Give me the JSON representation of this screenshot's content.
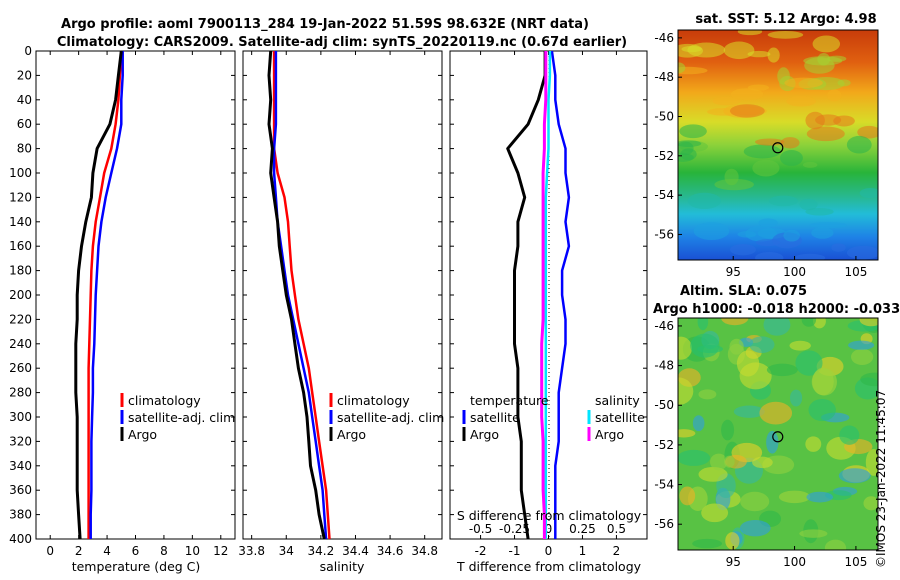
{
  "header": {
    "line1": "Argo profile: aoml 7900113_284 19-Jan-2022 51.59S 98.632E (NRT data)",
    "line2": "Climatology: CARS2009. Satellite-adj clim: synTS_20220119.nc (0.67d earlier)"
  },
  "stamp": "©IMOS 23-Jan-2022 11:45:07",
  "colors": {
    "climatology": "#ff0000",
    "satellite": "#0000ff",
    "argo": "#000000",
    "sal_satellite": "#00e5ff",
    "sal_argo": "#ff00ff"
  },
  "chart_data": [
    {
      "type": "line",
      "name": "temperature",
      "xlabel": "temperature (deg C)",
      "ylabel": "",
      "xlim": [
        -1,
        13
      ],
      "ylim": [
        400,
        0
      ],
      "xticks": [
        "0",
        "2",
        "4",
        "6",
        "8",
        "10",
        "12"
      ],
      "yticks": [
        "0",
        "20",
        "40",
        "60",
        "80",
        "100",
        "120",
        "140",
        "160",
        "180",
        "200",
        "220",
        "240",
        "260",
        "280",
        "300",
        "320",
        "340",
        "360",
        "380",
        "400"
      ],
      "depth": [
        0,
        20,
        40,
        60,
        80,
        100,
        120,
        140,
        160,
        180,
        200,
        220,
        240,
        260,
        280,
        300,
        320,
        340,
        360,
        380,
        400
      ],
      "legend": [
        "climatology",
        "satellite-adj. clim",
        "Argo"
      ],
      "series": [
        {
          "name": "climatology",
          "color": "#ff0000",
          "x": [
            5.0,
            4.9,
            4.8,
            4.6,
            4.3,
            3.8,
            3.5,
            3.2,
            3.0,
            2.9,
            2.85,
            2.8,
            2.75,
            2.7,
            2.7,
            2.7,
            2.7,
            2.7,
            2.7,
            2.7,
            2.7
          ]
        },
        {
          "name": "satellite-adj. clim",
          "color": "#0000ff",
          "x": [
            5.1,
            5.1,
            5.0,
            5.0,
            4.7,
            4.3,
            3.9,
            3.6,
            3.4,
            3.3,
            3.2,
            3.15,
            3.1,
            3.0,
            3.0,
            2.95,
            2.9,
            2.9,
            2.9,
            2.85,
            2.85
          ]
        },
        {
          "name": "Argo",
          "color": "#000000",
          "x": [
            5.0,
            4.8,
            4.6,
            4.2,
            3.3,
            3.0,
            2.9,
            2.5,
            2.2,
            2.0,
            1.9,
            1.9,
            1.8,
            1.8,
            1.8,
            1.9,
            1.9,
            1.9,
            1.9,
            2.0,
            2.1
          ]
        }
      ]
    },
    {
      "type": "line",
      "name": "salinity",
      "xlabel": "salinity",
      "ylabel": "",
      "xlim": [
        33.75,
        34.9
      ],
      "ylim": [
        400,
        0
      ],
      "xticks": [
        "33.8",
        "34",
        "34.2",
        "34.4",
        "34.6",
        "34.8"
      ],
      "depth": [
        0,
        20,
        40,
        60,
        80,
        100,
        120,
        140,
        160,
        180,
        200,
        220,
        240,
        260,
        280,
        300,
        320,
        340,
        360,
        380,
        400
      ],
      "legend": [
        "climatology",
        "satellite-adj. clim",
        "Argo"
      ],
      "series": [
        {
          "name": "climatology",
          "color": "#ff0000",
          "x": [
            33.93,
            33.93,
            33.93,
            33.93,
            33.93,
            33.95,
            33.99,
            34.01,
            34.02,
            34.03,
            34.05,
            34.07,
            34.1,
            34.13,
            34.15,
            34.17,
            34.19,
            34.21,
            34.23,
            34.24,
            34.25
          ]
        },
        {
          "name": "satellite-adj. clim",
          "color": "#0000ff",
          "x": [
            33.94,
            33.94,
            33.94,
            33.94,
            33.93,
            33.93,
            33.94,
            33.95,
            33.97,
            33.99,
            34.01,
            34.04,
            34.07,
            34.1,
            34.13,
            34.15,
            34.17,
            34.19,
            34.21,
            34.22,
            34.23
          ]
        },
        {
          "name": "Argo",
          "color": "#000000",
          "x": [
            33.91,
            33.9,
            33.91,
            33.9,
            33.92,
            33.91,
            33.93,
            33.95,
            33.96,
            33.98,
            34.0,
            34.03,
            34.05,
            34.07,
            34.1,
            34.12,
            34.13,
            34.14,
            34.17,
            34.19,
            34.22
          ]
        }
      ]
    },
    {
      "type": "line",
      "name": "difference",
      "xlabel": "T difference from climatology",
      "x2label": "S difference from climatology",
      "xlim": [
        -2.9,
        2.9
      ],
      "ylim": [
        400,
        0
      ],
      "xticks": [
        "-2",
        "-1",
        "0",
        "1",
        "2"
      ],
      "x2ticks": [
        "-0.5",
        "-0.25",
        "0",
        "0.25",
        "0.5"
      ],
      "depth": [
        0,
        20,
        40,
        60,
        80,
        100,
        120,
        140,
        160,
        180,
        200,
        220,
        240,
        260,
        280,
        300,
        320,
        340,
        360,
        380,
        400
      ],
      "legend_temperature_title": "temperature",
      "legend_salinity_title": "salinity",
      "legend_temperature": [
        "satellite",
        "Argo"
      ],
      "legend_salinity": [
        "satellite",
        "Argo"
      ],
      "series": [
        {
          "name": "T satellite",
          "color": "#0000ff",
          "x": [
            0.1,
            0.2,
            0.2,
            0.3,
            0.5,
            0.5,
            0.6,
            0.5,
            0.6,
            0.4,
            0.4,
            0.5,
            0.5,
            0.4,
            0.3,
            0.3,
            0.3,
            0.2,
            0.2,
            0.2,
            0.2
          ]
        },
        {
          "name": "T Argo",
          "color": "#000000",
          "x": [
            -0.1,
            -0.1,
            -0.3,
            -0.6,
            -1.2,
            -0.9,
            -0.7,
            -0.9,
            -0.9,
            -1.0,
            -1.0,
            -1.0,
            -1.0,
            -0.9,
            -0.9,
            -0.9,
            -0.8,
            -0.8,
            -0.8,
            -0.7,
            -0.6
          ]
        },
        {
          "name": "S satellite",
          "color": "#00e5ff",
          "x": [
            0.01,
            0.01,
            0.0,
            0.0,
            0.0,
            -0.01,
            -0.02,
            -0.02,
            -0.02,
            -0.02,
            -0.02,
            -0.02,
            -0.02,
            -0.02,
            -0.02,
            -0.02,
            -0.02,
            -0.02,
            -0.02,
            -0.02,
            -0.02
          ]
        },
        {
          "name": "S Argo",
          "color": "#ff00ff",
          "x": [
            -0.02,
            -0.02,
            -0.02,
            -0.03,
            -0.03,
            -0.04,
            -0.04,
            -0.04,
            -0.04,
            -0.04,
            -0.04,
            -0.04,
            -0.05,
            -0.05,
            -0.05,
            -0.05,
            -0.04,
            -0.04,
            -0.04,
            -0.03,
            -0.03
          ]
        }
      ]
    },
    {
      "type": "heatmap",
      "name": "sat_sst_map",
      "title": "sat. SST: 5.12 Argo: 4.98",
      "xticks": [
        "95",
        "100",
        "105"
      ],
      "yticks": [
        "-46",
        "-48",
        "-50",
        "-52",
        "-54",
        "-56"
      ],
      "xlim": [
        90.5,
        106.8
      ],
      "ylim": [
        -57.3,
        -45.6
      ],
      "argo_lon": 98.632,
      "argo_lat": -51.59
    },
    {
      "type": "heatmap",
      "name": "altim_sla_map",
      "title1": "Altim. SLA: 0.075",
      "title2": "Argo h1000: -0.018 h2000: -0.033",
      "xticks": [
        "95",
        "100",
        "105"
      ],
      "yticks": [
        "-46",
        "-48",
        "-50",
        "-52",
        "-54",
        "-56"
      ],
      "xlim": [
        90.5,
        106.8
      ],
      "ylim": [
        -57.3,
        -45.6
      ],
      "argo_lon": 98.632,
      "argo_lat": -51.59
    }
  ]
}
